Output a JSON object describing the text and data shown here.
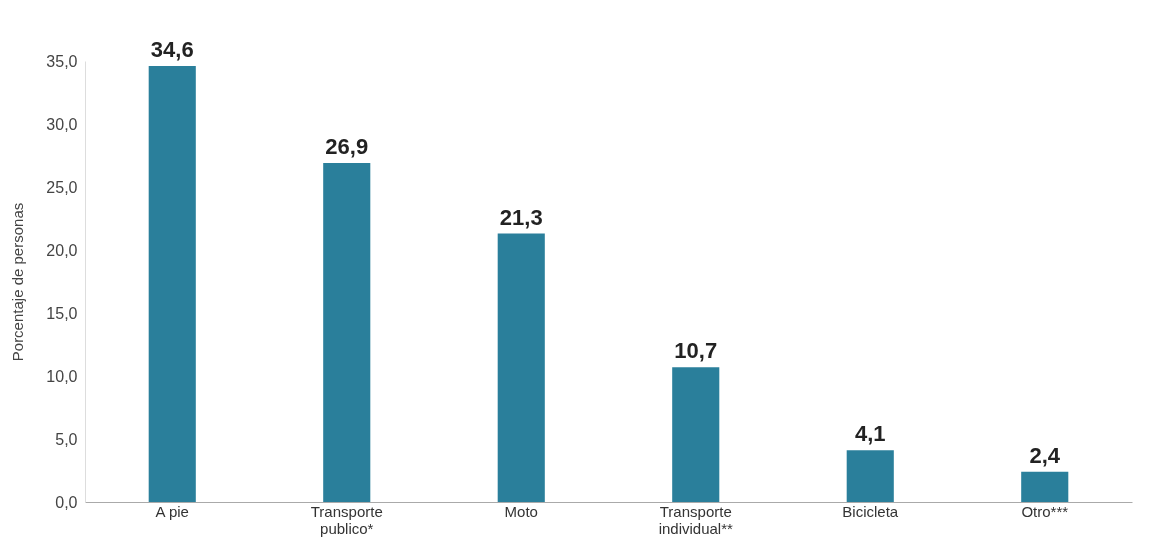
{
  "chart_data": {
    "type": "bar",
    "ylabel": "Porcentaje de personas",
    "categories": [
      "A pie",
      "Transporte publico*",
      "Moto",
      "Transporte individual**",
      "Bicicleta",
      "Otro***"
    ],
    "values": [
      34.6,
      26.9,
      21.3,
      10.7,
      4.1,
      2.4
    ],
    "value_labels": [
      "34,6",
      "26,9",
      "21,3",
      "10,7",
      "4,1",
      "2,4"
    ],
    "color": "#2a7f9b",
    "ylim": [
      0,
      35
    ],
    "yticks": [
      {
        "value": 0,
        "label": "0,0"
      },
      {
        "value": 5,
        "label": "5,0"
      },
      {
        "value": 10,
        "label": "10,0"
      },
      {
        "value": 15,
        "label": "15,0"
      },
      {
        "value": 20,
        "label": "20,0"
      },
      {
        "value": 25,
        "label": "25,0"
      },
      {
        "value": 30,
        "label": "30,0"
      },
      {
        "value": 35,
        "label": "35,0"
      }
    ],
    "grid": false
  }
}
